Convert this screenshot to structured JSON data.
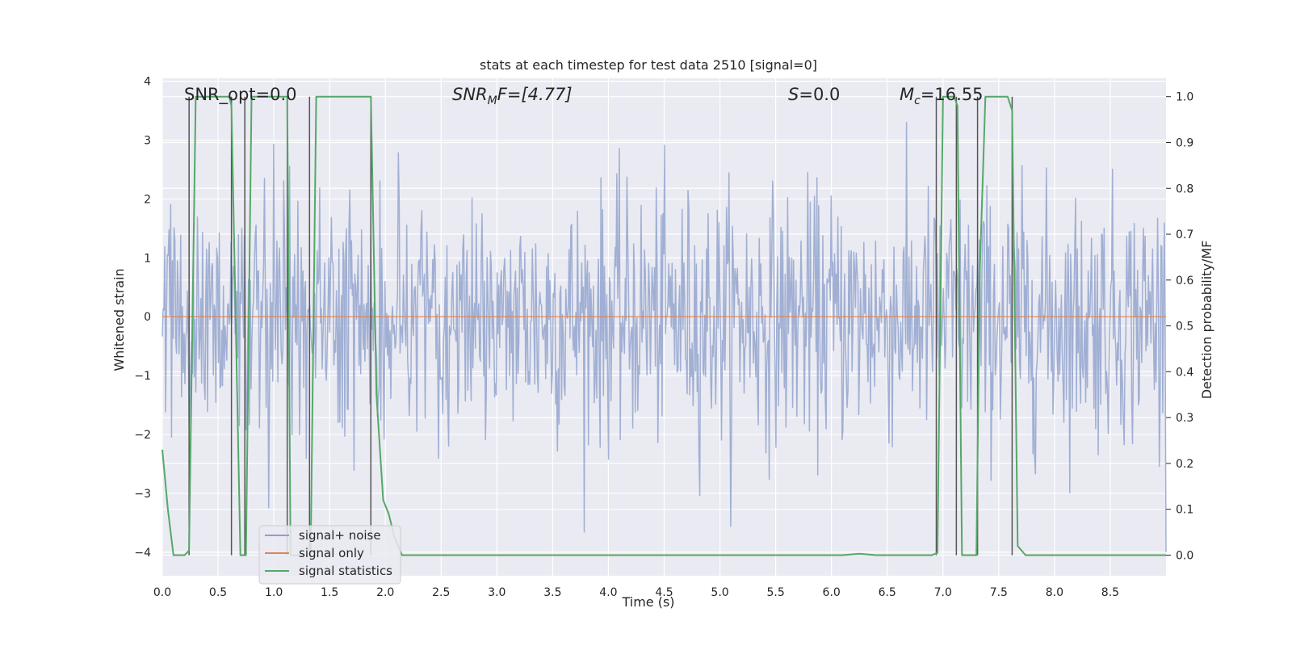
{
  "chart_data": {
    "type": "line",
    "title": "stats at each timestep for test data 2510 [signal=0]",
    "xlabel": "Time (s)",
    "ylabel": "Whitened strain",
    "y2label": "Detection probability/MF",
    "xlim": [
      0.0,
      9.0
    ],
    "ylim": [
      -4.4,
      4.05
    ],
    "y2lim": [
      -0.045,
      1.04
    ],
    "xticks": [
      "0.0",
      "0.5",
      "1.0",
      "1.5",
      "2.0",
      "2.5",
      "3.0",
      "3.5",
      "4.0",
      "4.5",
      "5.0",
      "5.5",
      "6.0",
      "6.5",
      "7.0",
      "7.5",
      "8.0",
      "8.5"
    ],
    "yticks": [
      "4",
      "3",
      "2",
      "1",
      "0",
      "−1",
      "−2",
      "−3",
      "−4"
    ],
    "y2ticks": [
      "1.0",
      "0.9",
      "0.8",
      "0.7",
      "0.6",
      "0.5",
      "0.4",
      "0.3",
      "0.2",
      "0.1",
      "0.0"
    ],
    "annotations": [
      {
        "id": "snr-opt",
        "text": "SNR_opt=0.0",
        "x": 0.2
      },
      {
        "id": "snr-mf",
        "base": "SNR",
        "sub": "M",
        "rest": "F=[4.77]",
        "x": 2.6
      },
      {
        "id": "s",
        "base": "S",
        "rest": "=0.0",
        "x": 5.6
      },
      {
        "id": "mc",
        "base": "M",
        "sub": "c",
        "rest": "=16.55",
        "x": 6.6
      }
    ],
    "legend": {
      "position": "lower-left",
      "entries": [
        {
          "label": "signal+ noise",
          "color": "#8da0cb"
        },
        {
          "label": "signal only",
          "color": "#dd8452"
        },
        {
          "label": "signal statistics",
          "color": "#55a868"
        }
      ]
    },
    "series": [
      {
        "name": "signal+ noise",
        "kind": "whitened strain noise, sampled",
        "color": "#8da0cb",
        "opacity": 0.8,
        "samples": 1200,
        "noise_std": 1.0,
        "y_range_observed": [
          -4.0,
          3.3
        ]
      },
      {
        "name": "signal only",
        "kind": "constant",
        "color": "#dd8452",
        "value": 0.0
      },
      {
        "name": "signal statistics",
        "color": "#55a868",
        "axis": "right",
        "x": [
          0.0,
          0.05,
          0.1,
          0.2,
          0.24,
          0.3,
          0.6,
          0.62,
          0.7,
          0.75,
          0.8,
          1.12,
          1.15,
          1.33,
          1.38,
          1.87,
          1.92,
          1.98,
          2.03,
          2.08,
          2.15,
          6.1,
          6.25,
          6.4,
          6.9,
          6.95,
          7.0,
          7.1,
          7.13,
          7.17,
          7.25,
          7.3,
          7.33,
          7.38,
          7.58,
          7.62,
          7.67,
          7.74,
          9.0
        ],
        "y": [
          0.23,
          0.1,
          0.0,
          0.0,
          0.01,
          1.0,
          1.0,
          0.98,
          0.0,
          0.0,
          1.0,
          1.0,
          0.0,
          0.0,
          1.0,
          1.0,
          0.35,
          0.12,
          0.09,
          0.04,
          0.0,
          0.0,
          0.003,
          0.0,
          0.0,
          0.005,
          1.0,
          1.0,
          0.98,
          0.0,
          0.0,
          0.0,
          0.62,
          1.0,
          1.0,
          0.97,
          0.02,
          0.0,
          0.0
        ]
      }
    ],
    "vertical_lines_x": [
      0.24,
      0.62,
      0.74,
      1.12,
      1.32,
      1.87,
      6.94,
      7.12,
      7.31,
      7.62
    ]
  }
}
